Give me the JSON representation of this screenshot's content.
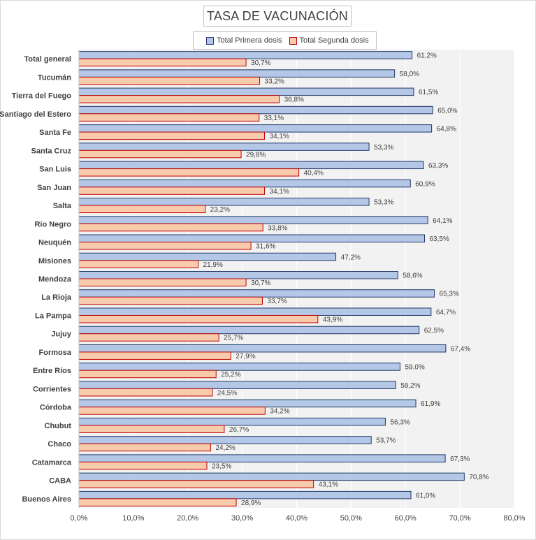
{
  "chart_data": {
    "type": "bar",
    "orientation": "horizontal",
    "title": "TASA DE VACUNACIÓN",
    "categories": [
      "Total general",
      "Tucumán",
      "Tierra del Fuego",
      "Santiago del Estero",
      "Santa Fe",
      "Santa Cruz",
      "San Luis",
      "San Juan",
      "Salta",
      "Río Negro",
      "Neuquén",
      "Misiones",
      "Mendoza",
      "La Rioja",
      "La Pampa",
      "Jujuy",
      "Formosa",
      "Entre Ríos",
      "Corrientes",
      "Córdoba",
      "Chubut",
      "Chaco",
      "Catamarca",
      "CABA",
      "Buenos Aires"
    ],
    "series": [
      {
        "name": "Total Primera dosis",
        "color": "#b4c7e7",
        "border": "#1f3864",
        "values": [
          61.2,
          58.0,
          61.5,
          65.0,
          64.8,
          53.3,
          63.3,
          60.9,
          53.3,
          64.1,
          63.5,
          47.2,
          58.6,
          65.3,
          64.7,
          62.5,
          67.4,
          59.0,
          58.2,
          61.9,
          56.3,
          53.7,
          67.3,
          70.8,
          61.0
        ],
        "labels": [
          "61,2%",
          "58,0%",
          "61,5%",
          "65,0%",
          "64,8%",
          "53,3%",
          "63,3%",
          "60,9%",
          "53,3%",
          "64,1%",
          "63,5%",
          "47,2%",
          "58,6%",
          "65,3%",
          "64,7%",
          "62,5%",
          "67,4%",
          "59,0%",
          "58,2%",
          "61,9%",
          "56,3%",
          "53,7%",
          "67,3%",
          "70,8%",
          "61,0%"
        ]
      },
      {
        "name": "Total Segunda dosis",
        "color": "#f8cbad",
        "border": "#c00000",
        "values": [
          30.7,
          33.2,
          36.8,
          33.1,
          34.1,
          29.8,
          40.4,
          34.1,
          23.2,
          33.8,
          31.6,
          21.9,
          30.7,
          33.7,
          43.9,
          25.7,
          27.9,
          25.2,
          24.5,
          34.2,
          26.7,
          24.2,
          23.5,
          43.1,
          28.9
        ],
        "labels": [
          "30,7%",
          "33,2%",
          "36,8%",
          "33,1%",
          "34,1%",
          "29,8%",
          "40,4%",
          "34,1%",
          "23,2%",
          "33,8%",
          "31,6%",
          "21,9%",
          "30,7%",
          "33,7%",
          "43,9%",
          "25,7%",
          "27,9%",
          "25,2%",
          "24,5%",
          "34,2%",
          "26,7%",
          "24,2%",
          "23,5%",
          "43,1%",
          "28,9%"
        ]
      }
    ],
    "xlim": [
      0,
      80
    ],
    "x_ticks": [
      0,
      10,
      20,
      30,
      40,
      50,
      60,
      70,
      80
    ],
    "x_tick_labels": [
      "0,0%",
      "10,0%",
      "20,0%",
      "30,0%",
      "40,0%",
      "50,0%",
      "60,0%",
      "70,0%",
      "80,0%"
    ],
    "legend_position": "top-center",
    "grid": true,
    "plot_background": "#f2f2f2"
  }
}
